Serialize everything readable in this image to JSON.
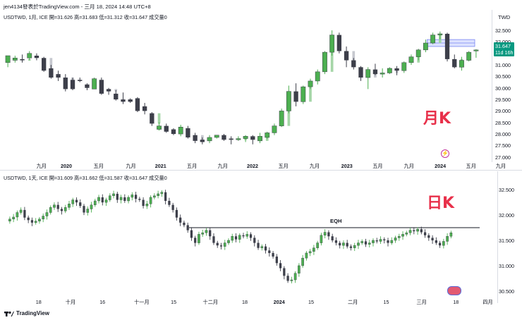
{
  "header": {
    "title": "jen4134發表於TradingView.com - 三月 18, 2024 14:48 UTC+8"
  },
  "footer": {
    "brand": "TradingView"
  },
  "colors": {
    "up": "#4caf50",
    "down": "#3d3f4a",
    "up_pending": "#a5d6a7",
    "down_pending": "#c6c8cf",
    "annotation": "#e8304a",
    "zone_fill": "#c7ceff",
    "zone_line": "#7a86f2"
  },
  "chart_data": [
    {
      "type": "candlestick",
      "panel": "monthly",
      "title": "USDTWD, 1月, ICE  開=31.626  高=31.683  低=31.312  收=31.647  成交量0",
      "annotation": "月K",
      "currency": "TWD",
      "ylim": [
        26.9,
        32.9
      ],
      "y_ticks": [
        "32.500",
        "32.000",
        "31.500",
        "31.000",
        "30.500",
        "30.000",
        "29.500",
        "29.000",
        "28.500",
        "28.000",
        "27.500",
        "27.000"
      ],
      "x_ticks": [
        {
          "label": "九月",
          "pos": 0.075,
          "bold": false
        },
        {
          "label": "2020",
          "pos": 0.125,
          "bold": true
        },
        {
          "label": "五月",
          "pos": 0.19,
          "bold": false
        },
        {
          "label": "九月",
          "pos": 0.255,
          "bold": false
        },
        {
          "label": "2021",
          "pos": 0.315,
          "bold": true
        },
        {
          "label": "五月",
          "pos": 0.378,
          "bold": false
        },
        {
          "label": "九月",
          "pos": 0.44,
          "bold": false
        },
        {
          "label": "2022",
          "pos": 0.5,
          "bold": true
        },
        {
          "label": "五月",
          "pos": 0.562,
          "bold": false
        },
        {
          "label": "九月",
          "pos": 0.625,
          "bold": false
        },
        {
          "label": "2023",
          "pos": 0.69,
          "bold": true
        },
        {
          "label": "五月",
          "pos": 0.752,
          "bold": false
        },
        {
          "label": "九月",
          "pos": 0.815,
          "bold": false
        },
        {
          "label": "2024",
          "pos": 0.878,
          "bold": true
        },
        {
          "label": "五月",
          "pos": 0.94,
          "bold": false
        },
        {
          "label": "九月",
          "pos": 1.0,
          "bold": false
        }
      ],
      "last_price": "31.647",
      "countdown": "11d 16h",
      "ohlc": [
        [
          31.1,
          31.4,
          30.9,
          31.4
        ],
        [
          31.2,
          31.4,
          31.1,
          31.3
        ],
        [
          31.25,
          31.45,
          31.1,
          31.2
        ],
        [
          31.3,
          31.6,
          31.2,
          31.5
        ],
        [
          31.4,
          31.5,
          31.2,
          31.3
        ],
        [
          31.3,
          31.35,
          30.7,
          30.75
        ],
        [
          30.85,
          31.0,
          30.4,
          30.45
        ],
        [
          30.6,
          30.75,
          30.3,
          30.45
        ],
        [
          30.45,
          30.6,
          29.85,
          29.95
        ],
        [
          30.35,
          30.45,
          29.9,
          29.95
        ],
        [
          30.35,
          30.45,
          30.25,
          30.3
        ],
        [
          30.15,
          30.2,
          29.9,
          30.0
        ],
        [
          29.95,
          30.45,
          29.95,
          30.4
        ],
        [
          30.35,
          30.45,
          29.7,
          29.75
        ],
        [
          29.95,
          30.0,
          29.7,
          29.85
        ],
        [
          29.75,
          29.9,
          29.45,
          29.5
        ],
        [
          29.5,
          29.8,
          29.3,
          29.4
        ],
        [
          29.5,
          29.55,
          29.35,
          29.4
        ],
        [
          29.55,
          29.6,
          28.95,
          29.0
        ],
        [
          29.2,
          29.35,
          28.85,
          29.0
        ],
        [
          28.9,
          28.95,
          28.35,
          28.45
        ],
        [
          28.2,
          28.5,
          28.15,
          28.35
        ],
        [
          28.35,
          28.45,
          28.05,
          28.1
        ],
        [
          28.2,
          28.25,
          27.95,
          28.0
        ],
        [
          28.0,
          28.4,
          27.9,
          28.3
        ],
        [
          28.25,
          28.35,
          27.8,
          27.85
        ],
        [
          27.95,
          28.05,
          27.6,
          27.7
        ],
        [
          27.75,
          27.85,
          27.55,
          27.65
        ],
        [
          27.7,
          27.95,
          27.6,
          27.85
        ],
        [
          27.85,
          27.9,
          27.8,
          27.95
        ],
        [
          27.95,
          28.0,
          27.7,
          27.75
        ],
        [
          27.8,
          27.9,
          27.55,
          27.75
        ],
        [
          27.75,
          27.9,
          27.7,
          27.8
        ],
        [
          27.8,
          27.95,
          27.65,
          27.9
        ],
        [
          27.9,
          27.95,
          27.55,
          27.75
        ],
        [
          27.7,
          28.05,
          27.6,
          27.9
        ],
        [
          27.85,
          28.1,
          27.8,
          28.05
        ],
        [
          28.05,
          28.45,
          27.95,
          28.35
        ],
        [
          28.35,
          29.1,
          28.3,
          29.0
        ],
        [
          29.0,
          30.1,
          28.9,
          29.85
        ],
        [
          29.85,
          30.2,
          29.2,
          29.4
        ],
        [
          29.4,
          30.1,
          29.3,
          30.05
        ],
        [
          30.05,
          30.4,
          29.95,
          30.3
        ],
        [
          30.3,
          30.8,
          30.15,
          30.7
        ],
        [
          30.7,
          31.6,
          30.6,
          31.55
        ],
        [
          31.55,
          32.5,
          31.4,
          32.3
        ],
        [
          32.3,
          32.4,
          31.5,
          31.6
        ],
        [
          31.6,
          31.8,
          30.9,
          31.2
        ],
        [
          31.2,
          31.3,
          30.8,
          30.9
        ],
        [
          30.9,
          30.95,
          30.3,
          30.45
        ],
        [
          30.45,
          30.9,
          29.95,
          30.8
        ],
        [
          30.8,
          31.05,
          30.55,
          30.6
        ],
        [
          30.6,
          30.85,
          30.45,
          30.65
        ],
        [
          30.65,
          30.9,
          30.6,
          30.85
        ],
        [
          30.85,
          30.95,
          30.55,
          30.75
        ],
        [
          30.75,
          31.15,
          30.65,
          31.1
        ],
        [
          31.1,
          31.45,
          31.0,
          31.35
        ],
        [
          31.35,
          31.7,
          31.2,
          31.65
        ],
        [
          31.65,
          32.1,
          31.55,
          31.95
        ],
        [
          31.95,
          32.4,
          31.9,
          32.3
        ],
        [
          32.3,
          32.45,
          32.1,
          32.35
        ],
        [
          32.35,
          32.4,
          31.15,
          31.25
        ],
        [
          31.25,
          31.45,
          30.85,
          30.9
        ],
        [
          30.9,
          31.35,
          30.75,
          31.2
        ],
        [
          31.2,
          31.6,
          31.15,
          31.55
        ],
        [
          31.62,
          31.68,
          31.31,
          31.65
        ]
      ],
      "zone": {
        "from": 31.8,
        "to": 32.1
      }
    },
    {
      "type": "candlestick",
      "panel": "daily",
      "title": "USDTWD, 1天, ICE  開=31.609  高=31.662  低=31.587  收=31.647  成交量0",
      "annotation": "日K",
      "ylim": [
        30.4,
        32.6
      ],
      "y_ticks": [
        "32.500",
        "32.000",
        "31.500",
        "31.000",
        "30.500"
      ],
      "x_ticks": [
        {
          "label": "18",
          "pos": 0.07,
          "bold": false
        },
        {
          "label": "十月",
          "pos": 0.135,
          "bold": false
        },
        {
          "label": "16",
          "pos": 0.2,
          "bold": false
        },
        {
          "label": "十一月",
          "pos": 0.28,
          "bold": false
        },
        {
          "label": "15",
          "pos": 0.345,
          "bold": false
        },
        {
          "label": "十二月",
          "pos": 0.42,
          "bold": false
        },
        {
          "label": "18",
          "pos": 0.49,
          "bold": false
        },
        {
          "label": "2024",
          "pos": 0.56,
          "bold": true
        },
        {
          "label": "15",
          "pos": 0.625,
          "bold": false
        },
        {
          "label": "二月",
          "pos": 0.71,
          "bold": false
        },
        {
          "label": "15",
          "pos": 0.778,
          "bold": false
        },
        {
          "label": "三月",
          "pos": 0.85,
          "bold": false
        },
        {
          "label": "18",
          "pos": 0.92,
          "bold": false
        },
        {
          "label": "四月",
          "pos": 0.985,
          "bold": false
        }
      ],
      "eqh_label": "EQH",
      "eqh_level": 31.75,
      "close_series": [
        31.88,
        31.92,
        31.96,
        32.05,
        32.1,
        31.95,
        31.9,
        31.85,
        31.88,
        31.92,
        31.98,
        32.05,
        32.15,
        32.2,
        32.12,
        32.08,
        32.15,
        32.22,
        32.3,
        32.25,
        32.18,
        32.05,
        32.12,
        32.2,
        32.28,
        32.35,
        32.25,
        32.3,
        32.38,
        32.42,
        32.3,
        32.35,
        32.28,
        32.35,
        32.4,
        32.32,
        32.3,
        32.18,
        32.22,
        32.35,
        32.38,
        32.42,
        32.45,
        32.28,
        32.2,
        32.1,
        31.95,
        31.85,
        31.8,
        31.7,
        31.55,
        31.45,
        31.62,
        31.65,
        31.7,
        31.58,
        31.45,
        31.4,
        31.38,
        31.45,
        31.5,
        31.58,
        31.52,
        31.6,
        31.58,
        31.62,
        31.55,
        31.45,
        31.35,
        31.38,
        31.3,
        31.25,
        31.18,
        31.05,
        30.95,
        30.8,
        30.7,
        30.72,
        30.85,
        31.0,
        31.15,
        31.25,
        31.28,
        31.35,
        31.45,
        31.6,
        31.66,
        31.58,
        31.5,
        31.45,
        31.4,
        31.45,
        31.38,
        31.35,
        31.4,
        31.45,
        31.48,
        31.42,
        31.45,
        31.5,
        31.48,
        31.52,
        31.5,
        31.45,
        31.5,
        31.55,
        31.58,
        31.62,
        31.65,
        31.7,
        31.68,
        31.72,
        31.66,
        31.6,
        31.55,
        31.5,
        31.45,
        31.4,
        31.48,
        31.58,
        31.65
      ]
    }
  ]
}
